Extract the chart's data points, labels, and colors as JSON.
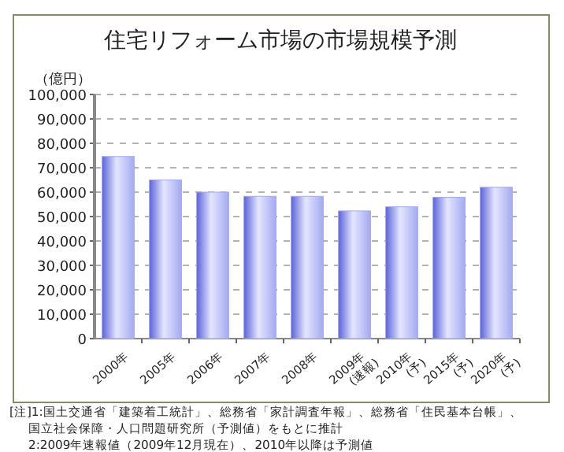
{
  "chart_data": {
    "type": "bar",
    "title": "住宅リフォーム市場の市場規模予測",
    "ylabel": "（億円）",
    "categories": [
      "2000年",
      "2005年",
      "2006年",
      "2007年",
      "2008年",
      "2009年(速報)",
      "2010年(予)",
      "2015年(予)",
      "2020年(予)"
    ],
    "values": [
      74600,
      65000,
      60000,
      58300,
      58300,
      52300,
      54000,
      57900,
      62000
    ],
    "color": "#a4aaf0",
    "ylim": [
      0,
      100000
    ],
    "yticks": [
      {
        "value": 0,
        "label": "0"
      },
      {
        "value": 10000,
        "label": "10,000"
      },
      {
        "value": 20000,
        "label": "20,000"
      },
      {
        "value": 30000,
        "label": "30,000"
      },
      {
        "value": 40000,
        "label": "40,000"
      },
      {
        "value": 50000,
        "label": "50,000"
      },
      {
        "value": 60000,
        "label": "60,000"
      },
      {
        "value": 70000,
        "label": "70,000"
      },
      {
        "value": 80000,
        "label": "80,000"
      },
      {
        "value": 90000,
        "label": "90,000"
      },
      {
        "value": 100000,
        "label": "100,000"
      }
    ],
    "grid": "y",
    "annotations": [
      "[注]1:国土交通省「建築着工統計」、総務省「家計調査年報」、総務省「住民基本台帳」、",
      "国立社会保障・人口問題研究所（予測値）をもとに推計",
      "2:2009年速報値（2009年12月現在）、2010年以降は予測値"
    ]
  }
}
